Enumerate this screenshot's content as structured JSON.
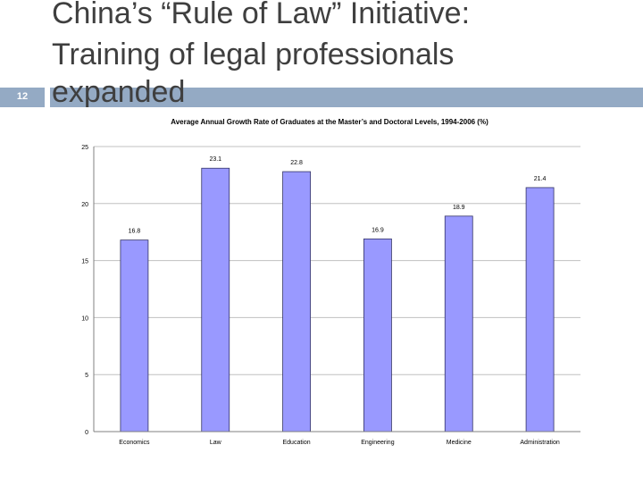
{
  "slide": {
    "title_line1": "China’s “Rule of Law” Initiative:",
    "title_line2": "Training of legal professionals",
    "title_line3": "expanded",
    "slide_number": "12",
    "accent_color": "#94aac4"
  },
  "chart_data": {
    "type": "bar",
    "title": "Average Annual Growth Rate of Graduates at the Master’s and Doctoral Levels, 1994-2006 (%)",
    "categories": [
      "Economics",
      "Law",
      "Education",
      "Engineering",
      "Medicine",
      "Administration"
    ],
    "values": [
      16.8,
      23.1,
      22.8,
      16.9,
      18.9,
      21.4
    ],
    "value_labels": [
      "16.8",
      "23.1",
      "22.8",
      "16.9",
      "18.9",
      "21.4"
    ],
    "yticks": [
      "0",
      "5",
      "10",
      "15",
      "20",
      "25"
    ],
    "ylim": [
      0,
      25
    ],
    "grid": true,
    "bar_color": "#9999ff",
    "grid_color": "#c0c0c0"
  }
}
